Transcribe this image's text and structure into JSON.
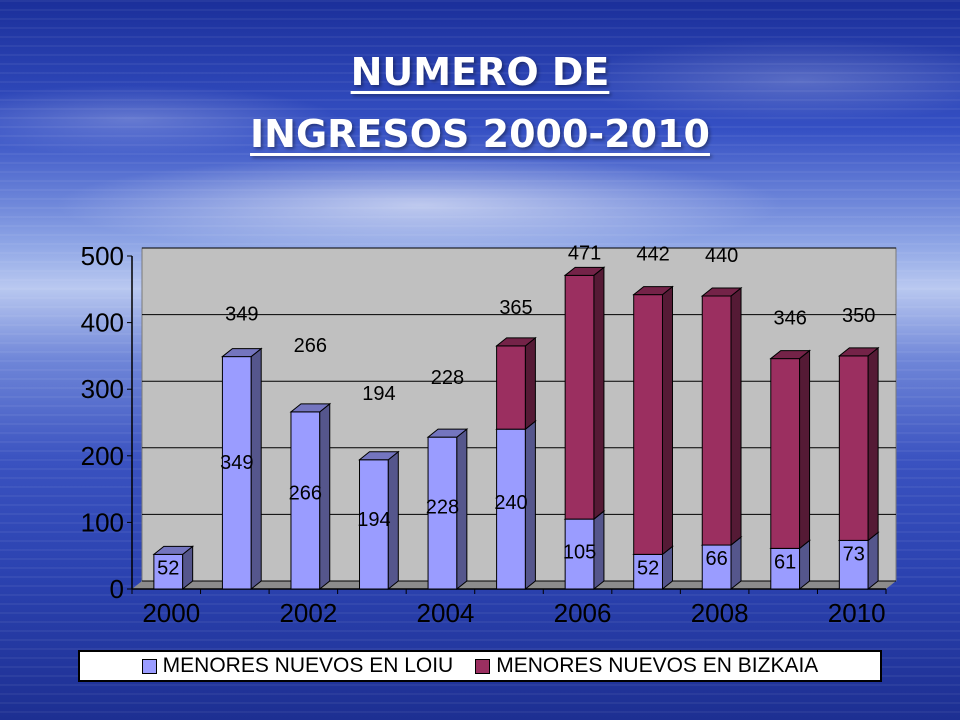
{
  "slide": {
    "title_line1": "NUMERO DE",
    "title_line2": "INGRESOS 2000-2010"
  },
  "colors": {
    "loiu": "#9a9cff",
    "bizkaia": "#9b2f60",
    "plot_bg": "#c0c0c0"
  },
  "chart_data": {
    "type": "bar",
    "stacked": true,
    "categories": [
      "2000",
      "2001",
      "2002",
      "2003",
      "2004",
      "2005",
      "2006",
      "2007",
      "2008",
      "2009",
      "2010"
    ],
    "x_tick_labels": [
      "2000",
      "2002",
      "2004",
      "2006",
      "2008",
      "2010"
    ],
    "series": [
      {
        "name": "MENORES NUEVOS EN LOIU",
        "values": [
          52,
          349,
          266,
          194,
          228,
          240,
          105,
          52,
          66,
          61,
          73
        ]
      },
      {
        "name": "MENORES NUEVOS EN BIZKAIA",
        "values": [
          0,
          0,
          0,
          0,
          0,
          125,
          366,
          390,
          374,
          285,
          277
        ]
      }
    ],
    "inner_labels": [
      "52",
      "349",
      "266",
      "194",
      "228",
      "240",
      "105",
      "52",
      "66",
      "61",
      "73"
    ],
    "top_labels": [
      "",
      "349",
      "266",
      "194",
      "228",
      "365",
      "471",
      "442",
      "440",
      "346",
      "350"
    ],
    "ylim": [
      0,
      500
    ],
    "yticks": [
      0,
      100,
      200,
      300,
      400,
      500
    ],
    "grid": true,
    "legend": "bottom"
  }
}
